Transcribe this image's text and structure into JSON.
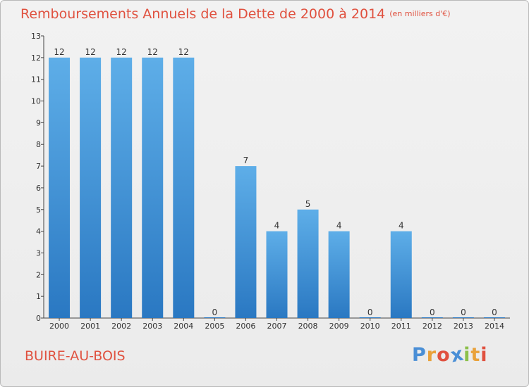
{
  "title": "Remboursements Annuels de la Dette de 2000 à 2014",
  "unit": "(en milliers d'€)",
  "city": "BUIRE-AU-BOIS",
  "logo": {
    "letters": [
      "P",
      "r",
      "o",
      "x",
      "i",
      "t",
      "i"
    ],
    "colors": [
      "#4a8fd6",
      "#e9a23b",
      "#e0513f",
      "#4a8fd6",
      "#8cc04b",
      "#e9a23b",
      "#e0513f"
    ]
  },
  "colors": {
    "bar_top": "#5eaee8",
    "bar_bottom": "#2a78c2",
    "title": "#e0513f",
    "axis": "#444444"
  },
  "chart_data": {
    "type": "bar",
    "title": "Remboursements Annuels de la Dette de 2000 à 2014",
    "subtitle": "(en milliers d'€)",
    "xlabel": "",
    "ylabel": "",
    "categories": [
      "2000",
      "2001",
      "2002",
      "2003",
      "2004",
      "2005",
      "2006",
      "2007",
      "2008",
      "2009",
      "2010",
      "2011",
      "2012",
      "2013",
      "2014"
    ],
    "values": [
      12,
      12,
      12,
      12,
      12,
      0,
      7,
      4,
      5,
      4,
      0,
      4,
      0,
      0,
      0
    ],
    "ylim": [
      0,
      13
    ],
    "yticks": [
      0,
      1,
      2,
      3,
      4,
      5,
      6,
      7,
      8,
      9,
      10,
      11,
      12,
      13
    ],
    "grid": false,
    "legend": "none"
  }
}
